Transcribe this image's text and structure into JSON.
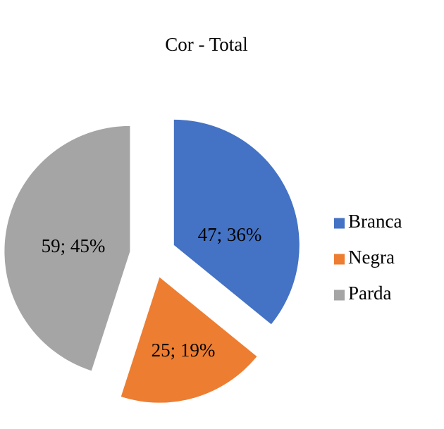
{
  "chart_data": {
    "type": "pie",
    "title": "Cor - Total",
    "categories": [
      "Branca",
      "Negra",
      "Parda"
    ],
    "values": [
      47,
      25,
      59
    ],
    "percentages": [
      36,
      19,
      45
    ],
    "data_labels": [
      "47; 36%",
      "25; 19%",
      "59; 45%"
    ],
    "colors": [
      "#4472C4",
      "#ED7D31",
      "#A5A5A5"
    ],
    "exploded": true,
    "legend_position": "right"
  }
}
